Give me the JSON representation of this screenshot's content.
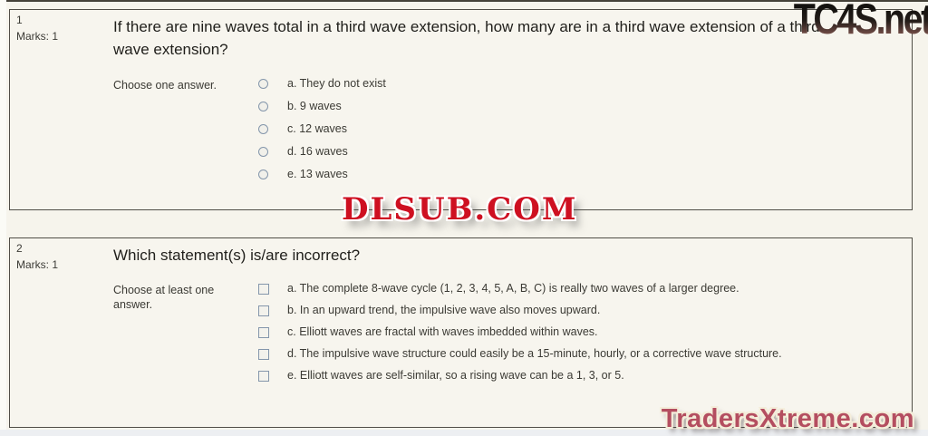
{
  "watermarks": {
    "top_right": "TC4S.net",
    "middle": "DLSUB.COM",
    "bottom_right": "TradersXtreme.com"
  },
  "colors": {
    "page_background": "#f6f4ec",
    "box_background": "#f7f5ee",
    "box_border": "#504e47",
    "control_border": "#8496ab",
    "watermark_red": "#ce1021",
    "watermark_rose": "#b44e60"
  },
  "questions": [
    {
      "number": "1",
      "marks": "Marks: 1",
      "title": "If there are nine waves total in a third wave extension, how many are in a third wave extension of a third wave extension?",
      "prompt": "Choose one answer.",
      "input_type": "radio",
      "options": [
        {
          "label": "a. They do not exist",
          "selected": false
        },
        {
          "label": "b. 9 waves",
          "selected": false
        },
        {
          "label": "c. 12 waves",
          "selected": false
        },
        {
          "label": "d. 16 waves",
          "selected": false
        },
        {
          "label": "e. 13 waves",
          "selected": false
        }
      ]
    },
    {
      "number": "2",
      "marks": "Marks: 1",
      "title": "Which statement(s) is/are incorrect?",
      "prompt": "Choose at least one answer.",
      "input_type": "checkbox",
      "options": [
        {
          "label": "a. The complete 8-wave cycle (1, 2, 3, 4, 5, A, B, C) is really two waves of a larger degree.",
          "selected": false
        },
        {
          "label": "b. In an upward trend, the impulsive wave also moves upward.",
          "selected": false
        },
        {
          "label": "c. Elliott waves are fractal with waves imbedded within waves.",
          "selected": false
        },
        {
          "label": "d. The impulsive wave structure could easily be a 15-minute, hourly, or a corrective wave structure.",
          "selected": false
        },
        {
          "label": "e. Elliott waves are self-similar, so a rising wave can be a 1, 3, or 5.",
          "selected": false
        }
      ]
    }
  ]
}
